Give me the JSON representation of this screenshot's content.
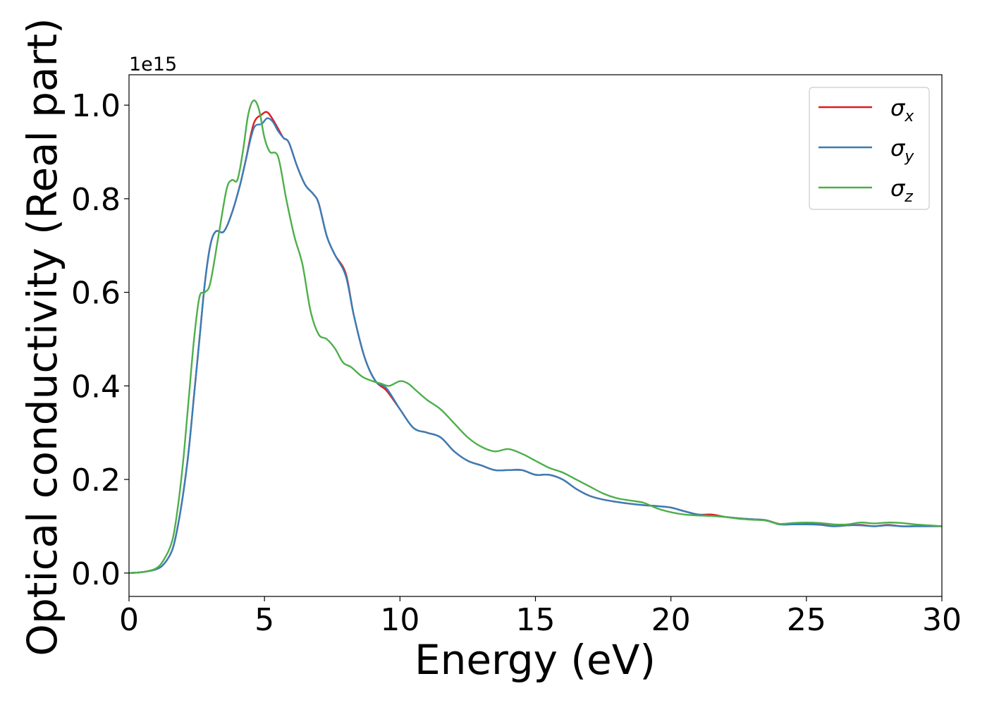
{
  "chart_data": {
    "type": "line",
    "xlabel": "Energy (eV)",
    "ylabel": "Optical conductivity (Real part)",
    "offset_label": "1e15",
    "xlim": [
      0,
      30
    ],
    "ylim": [
      -0.05,
      1.065
    ],
    "x_ticks": [
      0,
      5,
      10,
      15,
      20,
      25,
      30
    ],
    "x_tick_labels": [
      "0",
      "5",
      "10",
      "15",
      "20",
      "25",
      "30"
    ],
    "y_ticks": [
      0.0,
      0.2,
      0.4,
      0.6,
      0.8,
      1.0
    ],
    "y_tick_labels": [
      "0.0",
      "0.2",
      "0.4",
      "0.6",
      "0.8",
      "1.0"
    ],
    "grid": false,
    "legend_position": "top-right",
    "legend": [
      {
        "symbol": "σ",
        "subscript": "x",
        "color": "#e41a1c"
      },
      {
        "symbol": "σ",
        "subscript": "y",
        "color": "#377eb8"
      },
      {
        "symbol": "σ",
        "subscript": "z",
        "color": "#4daf4a"
      }
    ],
    "series": [
      {
        "color": "#e41a1c",
        "x": [
          0,
          0.5,
          1.0,
          1.3,
          1.6,
          1.8,
          2.0,
          2.2,
          2.4,
          2.6,
          2.8,
          3.0,
          3.2,
          3.5,
          3.8,
          4.1,
          4.3,
          4.6,
          4.9,
          5.1,
          5.3,
          5.5,
          5.7,
          5.9,
          6.2,
          6.5,
          6.8,
          7.0,
          7.3,
          7.6,
          8.0,
          8.3,
          8.7,
          9.1,
          9.5,
          10.0,
          10.5,
          11.0,
          11.5,
          12.0,
          12.5,
          13.0,
          13.5,
          14.0,
          14.5,
          15.0,
          15.5,
          16.0,
          16.5,
          17.0,
          17.5,
          18.0,
          18.5,
          19.0,
          19.5,
          20.0,
          20.5,
          21.0,
          21.5,
          22.0,
          22.5,
          23.0,
          23.5,
          24.0,
          24.5,
          25.0,
          25.5,
          26.0,
          26.5,
          27.0,
          27.5,
          28.0,
          28.5,
          29.0,
          29.5,
          30.0
        ],
        "y": [
          0.0,
          0.002,
          0.008,
          0.02,
          0.05,
          0.1,
          0.17,
          0.26,
          0.38,
          0.5,
          0.62,
          0.7,
          0.73,
          0.73,
          0.77,
          0.83,
          0.88,
          0.96,
          0.98,
          0.985,
          0.97,
          0.95,
          0.93,
          0.92,
          0.87,
          0.83,
          0.81,
          0.79,
          0.72,
          0.68,
          0.64,
          0.55,
          0.46,
          0.41,
          0.39,
          0.35,
          0.31,
          0.3,
          0.29,
          0.26,
          0.24,
          0.23,
          0.22,
          0.22,
          0.22,
          0.21,
          0.21,
          0.2,
          0.18,
          0.165,
          0.157,
          0.152,
          0.148,
          0.145,
          0.143,
          0.14,
          0.132,
          0.125,
          0.125,
          0.12,
          0.117,
          0.115,
          0.113,
          0.105,
          0.104,
          0.105,
          0.104,
          0.1,
          0.102,
          0.103,
          0.1,
          0.103,
          0.1,
          0.1,
          0.1,
          0.1
        ]
      },
      {
        "color": "#377eb8",
        "x": [
          0,
          0.5,
          1.0,
          1.3,
          1.6,
          1.8,
          2.0,
          2.2,
          2.4,
          2.6,
          2.8,
          3.0,
          3.2,
          3.5,
          3.8,
          4.1,
          4.3,
          4.6,
          4.9,
          5.1,
          5.3,
          5.5,
          5.7,
          5.9,
          6.2,
          6.5,
          6.8,
          7.0,
          7.3,
          7.6,
          8.0,
          8.3,
          8.7,
          9.1,
          9.5,
          10.0,
          10.5,
          11.0,
          11.5,
          12.0,
          12.5,
          13.0,
          13.5,
          14.0,
          14.5,
          15.0,
          15.5,
          16.0,
          16.5,
          17.0,
          17.5,
          18.0,
          18.5,
          19.0,
          19.5,
          20.0,
          20.5,
          21.0,
          21.5,
          22.0,
          22.5,
          23.0,
          23.5,
          24.0,
          24.5,
          25.0,
          25.5,
          26.0,
          26.5,
          27.0,
          27.5,
          28.0,
          28.5,
          29.0,
          29.5,
          30.0
        ],
        "y": [
          0.0,
          0.002,
          0.008,
          0.02,
          0.05,
          0.1,
          0.17,
          0.26,
          0.38,
          0.5,
          0.62,
          0.7,
          0.73,
          0.73,
          0.77,
          0.83,
          0.88,
          0.95,
          0.96,
          0.972,
          0.965,
          0.945,
          0.93,
          0.92,
          0.87,
          0.83,
          0.81,
          0.79,
          0.72,
          0.68,
          0.635,
          0.55,
          0.46,
          0.41,
          0.395,
          0.35,
          0.31,
          0.3,
          0.29,
          0.26,
          0.24,
          0.23,
          0.22,
          0.22,
          0.22,
          0.21,
          0.21,
          0.2,
          0.18,
          0.165,
          0.157,
          0.152,
          0.148,
          0.145,
          0.143,
          0.14,
          0.132,
          0.125,
          0.122,
          0.12,
          0.117,
          0.115,
          0.113,
          0.104,
          0.104,
          0.104,
          0.103,
          0.1,
          0.102,
          0.102,
          0.1,
          0.102,
          0.1,
          0.1,
          0.1,
          0.1
        ]
      },
      {
        "color": "#4daf4a",
        "x": [
          0,
          0.5,
          1.0,
          1.3,
          1.6,
          1.8,
          2.0,
          2.2,
          2.4,
          2.6,
          2.8,
          3.0,
          3.3,
          3.6,
          3.8,
          4.0,
          4.2,
          4.4,
          4.6,
          4.8,
          5.0,
          5.2,
          5.5,
          5.8,
          6.1,
          6.4,
          6.7,
          7.0,
          7.3,
          7.6,
          7.9,
          8.2,
          8.6,
          9.0,
          9.3,
          9.6,
          10.0,
          10.3,
          10.6,
          11.0,
          11.5,
          12.0,
          12.5,
          13.0,
          13.5,
          14.0,
          14.5,
          15.0,
          15.5,
          16.0,
          16.5,
          17.0,
          17.5,
          18.0,
          18.5,
          19.0,
          19.5,
          20.0,
          20.5,
          21.0,
          21.5,
          22.0,
          22.5,
          23.0,
          23.5,
          24.0,
          24.5,
          25.0,
          25.5,
          26.0,
          26.5,
          27.0,
          27.5,
          28.0,
          28.5,
          29.0,
          29.5,
          30.0
        ],
        "y": [
          0.0,
          0.002,
          0.01,
          0.03,
          0.07,
          0.14,
          0.24,
          0.37,
          0.5,
          0.59,
          0.6,
          0.62,
          0.72,
          0.82,
          0.84,
          0.84,
          0.9,
          0.98,
          1.01,
          0.99,
          0.93,
          0.9,
          0.89,
          0.8,
          0.72,
          0.66,
          0.56,
          0.51,
          0.5,
          0.48,
          0.45,
          0.44,
          0.42,
          0.41,
          0.405,
          0.4,
          0.41,
          0.405,
          0.39,
          0.37,
          0.35,
          0.32,
          0.29,
          0.27,
          0.26,
          0.265,
          0.255,
          0.24,
          0.225,
          0.215,
          0.2,
          0.185,
          0.17,
          0.16,
          0.155,
          0.15,
          0.138,
          0.13,
          0.125,
          0.123,
          0.122,
          0.12,
          0.116,
          0.114,
          0.112,
          0.105,
          0.107,
          0.108,
          0.107,
          0.104,
          0.104,
          0.108,
          0.106,
          0.108,
          0.107,
          0.104,
          0.102,
          0.1
        ]
      }
    ]
  }
}
